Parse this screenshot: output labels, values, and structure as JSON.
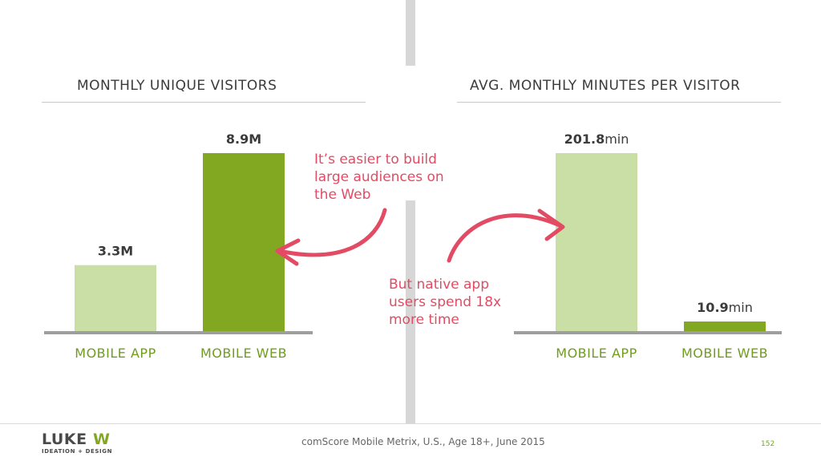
{
  "callouts": {
    "left": [
      "It’s easier to build",
      "large audiences on",
      "the Web"
    ],
    "right": [
      "But native app",
      "users spend 18x",
      "more time"
    ]
  },
  "source": "comScore Mobile Metrix, U.S., Age 18+, June 2015",
  "page_number": "152",
  "logo": {
    "brand": "LUKEW",
    "tagline": "IDEATION + DESIGN"
  },
  "colors": {
    "light_green": "#cadfa5",
    "dark_green": "#82a821",
    "axis": "#9e9e9e",
    "label_green": "#6f9c1e",
    "callout_red": "#e24b63",
    "divider": "#d7d7d7"
  },
  "chart_data": [
    {
      "type": "bar",
      "title": "MONTHLY UNIQUE VISITORS",
      "categories": [
        "MOBILE APP",
        "MOBILE WEB"
      ],
      "values": [
        3.3,
        8.9
      ],
      "value_labels": [
        {
          "num": "3.3M",
          "unit": ""
        },
        {
          "num": "8.9M",
          "unit": ""
        }
      ],
      "unit": "M",
      "ylim": [
        0,
        8.9
      ],
      "grid": false,
      "bar_colors": [
        "#cadfa5",
        "#82a821"
      ]
    },
    {
      "type": "bar",
      "title": "AVG. MONTHLY MINUTES PER VISITOR",
      "categories": [
        "MOBILE APP",
        "MOBILE WEB"
      ],
      "values": [
        201.8,
        10.9
      ],
      "value_labels": [
        {
          "num": "201.8",
          "unit": "min"
        },
        {
          "num": "10.9",
          "unit": "min"
        }
      ],
      "unit": "min",
      "ylim": [
        0,
        201.8
      ],
      "grid": false,
      "bar_colors": [
        "#cadfa5",
        "#82a821"
      ]
    }
  ]
}
